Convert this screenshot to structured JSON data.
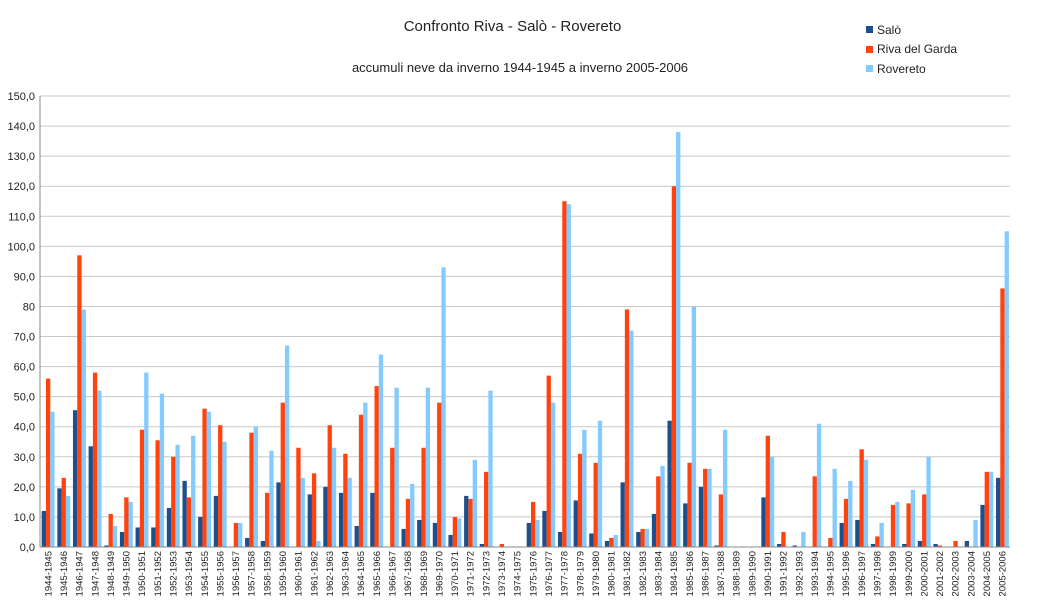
{
  "chart_data": {
    "type": "bar",
    "title": "Confronto Riva - Salò - Rovereto",
    "subtitle": "accumuli neve da inverno 1944-1945 a inverno 2005-2006",
    "ylim": [
      0,
      150
    ],
    "yticks": [
      "0,0",
      "10,0",
      "20,0",
      "30,0",
      "40,0",
      "50,0",
      "60,0",
      "70,0",
      "80",
      "90,0",
      "100,0",
      "110,0",
      "120,0",
      "130,0",
      "140,0",
      "150,0"
    ],
    "grid": true,
    "legend_position": "top-right",
    "categories": [
      "1944-1945",
      "1945-1946",
      "1946-1947",
      "1947-1948",
      "1948-1949",
      "1949-1950",
      "1950-1951",
      "1951-1952",
      "1952-1953",
      "1953-1954",
      "1954-1955",
      "1955-1956",
      "1956-1957",
      "1957-1958",
      "1958-1959",
      "1959-1960",
      "1960-1961",
      "1961-1962",
      "1962-1963",
      "1963-1964",
      "1964-1965",
      "1965-1966",
      "1966-1967",
      "1967-1968",
      "1968-1969",
      "1969-1970",
      "1970-1971",
      "1971-1972",
      "1972-1973",
      "1973-1974",
      "1974-1975",
      "1975-1976",
      "1976-1977",
      "1977-1978",
      "1978-1979",
      "1979-1980",
      "1980-1981",
      "1981-1982",
      "1982-1983",
      "1983-1984",
      "1984-1985",
      "1985-1986",
      "1986-1987",
      "1987-1988",
      "1988-1989",
      "1989-1990",
      "1990-1991",
      "1991-1992",
      "1992-1993",
      "1993-1994",
      "1994-1995",
      "1995-1996",
      "1996-1997",
      "1997-1998",
      "1998-1999",
      "1999-2000",
      "2000-2001",
      "2001-2002",
      "2002-2003",
      "2003-2004",
      "2004-2005",
      "2005-2006"
    ],
    "series": [
      {
        "name": "Salò",
        "color": "#1f4e8c",
        "values": [
          12,
          19.5,
          45.5,
          33.5,
          0.5,
          5,
          6.5,
          6.5,
          13,
          22,
          10,
          17,
          0,
          3,
          2,
          21.5,
          0,
          17.5,
          20,
          18,
          7,
          18,
          0,
          6,
          9,
          8,
          4,
          17,
          1,
          0,
          0,
          8,
          12,
          5,
          15.5,
          4.5,
          2,
          21.5,
          5,
          11,
          42,
          14.5,
          20,
          0.5,
          0,
          0,
          16.5,
          1,
          0.5,
          0,
          0,
          8,
          9,
          1,
          0,
          1,
          2,
          1,
          0,
          2,
          14,
          23
        ]
      },
      {
        "name": "Riva del Garda",
        "color": "#ff420e",
        "values": [
          56,
          23,
          97,
          58,
          11,
          16.5,
          39,
          35.5,
          30,
          16.5,
          46,
          40.5,
          8,
          38,
          18,
          48,
          33,
          24.5,
          40.5,
          31,
          44,
          53.5,
          33,
          16,
          33,
          48,
          10,
          16,
          25,
          1,
          0,
          15,
          57,
          115,
          31,
          28,
          3,
          79,
          6,
          23.5,
          120,
          28,
          26,
          17.5,
          0,
          0,
          37,
          5,
          0,
          23.5,
          3,
          16,
          32.5,
          3.5,
          14,
          14.5,
          17.5,
          0.5,
          2,
          0,
          25,
          86
        ]
      },
      {
        "name": "Rovereto",
        "color": "#83caff",
        "values": [
          45,
          17,
          79,
          52,
          7,
          15,
          58,
          51,
          34,
          37,
          45,
          35,
          8,
          40,
          32,
          67,
          23,
          2,
          33,
          23,
          48,
          64,
          53,
          21,
          53,
          93,
          9.5,
          29,
          52,
          0,
          0,
          9,
          48,
          114,
          39,
          42,
          4,
          72,
          6,
          27,
          138,
          80,
          26,
          39,
          0,
          0,
          30,
          0,
          5,
          41,
          26,
          22,
          29,
          8,
          15,
          19,
          30,
          0,
          0,
          9,
          25,
          105
        ]
      }
    ]
  }
}
